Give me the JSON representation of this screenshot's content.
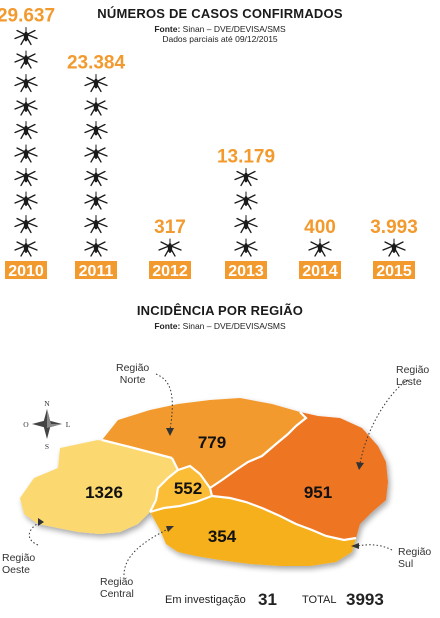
{
  "chart_data": [
    {
      "type": "bar",
      "title": "NÚMEROS DE CASOS CONFIRMADOS",
      "source_label": "Fonte:",
      "source": "Sinan – DVE/DEVISA/SMS",
      "note": "Dados parciais até 09/12/2015",
      "categories": [
        "2010",
        "2011",
        "2012",
        "2013",
        "2014",
        "2015"
      ],
      "values": [
        29637,
        23384,
        317,
        13179,
        400,
        3993
      ],
      "value_labels": [
        "29.637",
        "23.384",
        "317",
        "13.179",
        "400",
        "3.993"
      ]
    },
    {
      "type": "map",
      "title": "INCIDÊNCIA POR REGIÃO",
      "source_label": "Fonte:",
      "source": "Sinan – DVE/DEVISA/SMS",
      "regions": [
        {
          "name": "Região Norte",
          "label_lines": [
            "Região",
            "Norte"
          ],
          "value": 779,
          "color": "#f39a2e"
        },
        {
          "name": "Região Leste",
          "label_lines": [
            "Região",
            "Leste"
          ],
          "value": 951,
          "color": "#ee7423"
        },
        {
          "name": "Região Oeste",
          "label_lines": [
            "Região",
            "Oeste"
          ],
          "value": 1326,
          "color": "#fbd870"
        },
        {
          "name": "Região Central",
          "label_lines": [
            "Região",
            "Central"
          ],
          "value": 552,
          "color": "#fbbd35"
        },
        {
          "name": "Região Sul",
          "label_lines": [
            "Região",
            "Sul"
          ],
          "value": 354,
          "color": "#f6b01c"
        }
      ],
      "compass": {
        "n": "N",
        "s": "S",
        "o": "O",
        "l": "L"
      },
      "investigation_label": "Em investigação",
      "investigation_value": "31",
      "total_label": "TOTAL",
      "total_value": "3993"
    }
  ],
  "colors": {
    "accent": "#f39a2e",
    "year_box": "#f39a2e",
    "mosquito": "#1a1a1a"
  }
}
